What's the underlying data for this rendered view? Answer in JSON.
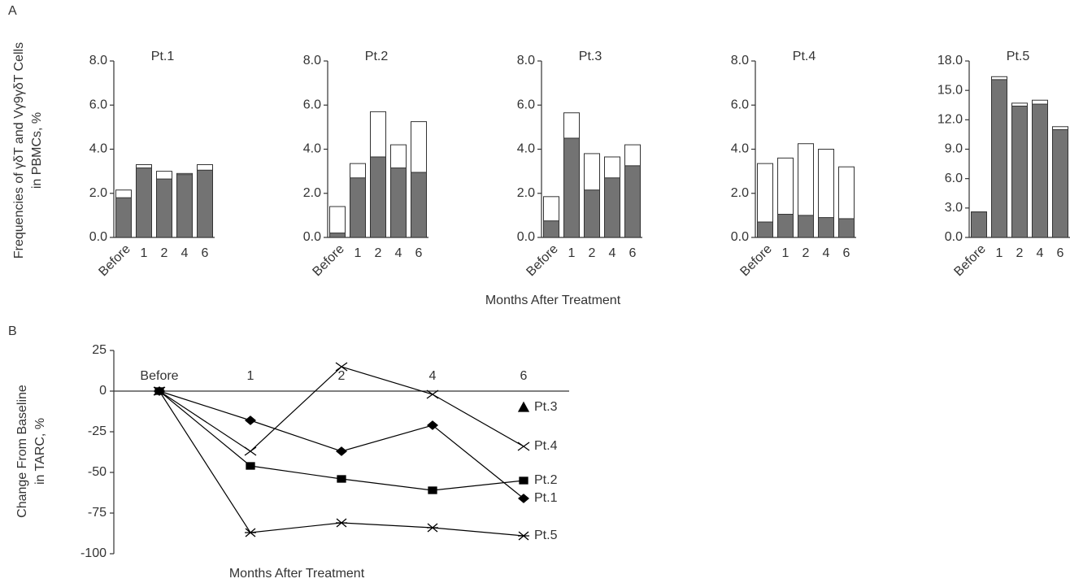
{
  "panel_a": {
    "label": "A",
    "ylabel": [
      "Frequencies of γδT and Vγ9γδT Cells",
      "in PBMCs, %"
    ],
    "xlabel": "Months After Treatment"
  },
  "panel_b": {
    "label": "B"
  },
  "chart_data": [
    {
      "type": "bar",
      "title": "Pt.1",
      "categories": [
        "Before",
        "1",
        "2",
        "4",
        "6"
      ],
      "series": [
        {
          "color": "#ffffff",
          "values": [
            2.15,
            3.3,
            3.0,
            2.9,
            3.3
          ]
        },
        {
          "color": "#737373",
          "values": [
            1.8,
            3.15,
            2.65,
            2.85,
            3.05
          ]
        }
      ],
      "ylim": [
        0,
        8
      ],
      "yticks": [
        {
          "value": 0,
          "label": "0.0"
        },
        {
          "value": 2,
          "label": "2.0"
        },
        {
          "value": 4,
          "label": "4.0"
        },
        {
          "value": 6,
          "label": "6.0"
        },
        {
          "value": 8,
          "label": "8.0"
        }
      ]
    },
    {
      "type": "bar",
      "title": "Pt.2",
      "categories": [
        "Before",
        "1",
        "2",
        "4",
        "6"
      ],
      "series": [
        {
          "color": "#ffffff",
          "values": [
            1.4,
            3.35,
            5.7,
            4.2,
            5.25
          ]
        },
        {
          "color": "#737373",
          "values": [
            0.2,
            2.7,
            3.65,
            3.15,
            2.95
          ]
        }
      ],
      "ylim": [
        0,
        8
      ],
      "yticks": [
        {
          "value": 0,
          "label": "0.0"
        },
        {
          "value": 2,
          "label": "2.0"
        },
        {
          "value": 4,
          "label": "4.0"
        },
        {
          "value": 6,
          "label": "6.0"
        },
        {
          "value": 8,
          "label": "8.0"
        }
      ]
    },
    {
      "type": "bar",
      "title": "Pt.3",
      "categories": [
        "Before",
        "1",
        "2",
        "4",
        "6"
      ],
      "series": [
        {
          "color": "#ffffff",
          "values": [
            1.85,
            5.65,
            3.8,
            3.65,
            4.2
          ]
        },
        {
          "color": "#737373",
          "values": [
            0.75,
            4.5,
            2.15,
            2.7,
            3.25
          ]
        }
      ],
      "ylim": [
        0,
        8
      ],
      "yticks": [
        {
          "value": 0,
          "label": "0.0"
        },
        {
          "value": 2,
          "label": "2.0"
        },
        {
          "value": 4,
          "label": "4.0"
        },
        {
          "value": 6,
          "label": "6.0"
        },
        {
          "value": 8,
          "label": "8.0"
        }
      ]
    },
    {
      "type": "bar",
      "title": "Pt.4",
      "categories": [
        "Before",
        "1",
        "2",
        "4",
        "6"
      ],
      "series": [
        {
          "color": "#ffffff",
          "values": [
            3.35,
            3.6,
            4.25,
            4.0,
            3.2
          ]
        },
        {
          "color": "#737373",
          "values": [
            0.7,
            1.05,
            1.0,
            0.9,
            0.85
          ]
        }
      ],
      "ylim": [
        0,
        8
      ],
      "yticks": [
        {
          "value": 0,
          "label": "0.0"
        },
        {
          "value": 2,
          "label": "2.0"
        },
        {
          "value": 4,
          "label": "4.0"
        },
        {
          "value": 6,
          "label": "6.0"
        },
        {
          "value": 8,
          "label": "8.0"
        }
      ]
    },
    {
      "type": "bar",
      "title": "Pt.5",
      "categories": [
        "Before",
        "1",
        "2",
        "4",
        "6"
      ],
      "series": [
        {
          "color": "#ffffff",
          "values": [
            2.6,
            16.4,
            13.7,
            14.0,
            11.3
          ]
        },
        {
          "color": "#737373",
          "values": [
            2.6,
            16.1,
            13.4,
            13.6,
            11.0
          ]
        }
      ],
      "ylim": [
        0,
        18
      ],
      "yticks": [
        {
          "value": 0,
          "label": "0.0"
        },
        {
          "value": 3,
          "label": "3.0"
        },
        {
          "value": 6,
          "label": "6.0"
        },
        {
          "value": 9,
          "label": "9.0"
        },
        {
          "value": 12,
          "label": "12.0"
        },
        {
          "value": 15,
          "label": "15.0"
        },
        {
          "value": 18,
          "label": "18.0"
        }
      ]
    },
    {
      "type": "line",
      "ylabel": [
        "Change From Baseline",
        "in TARC, %"
      ],
      "xlabel": "Months After Treatment",
      "categories": [
        "Before",
        "1",
        "2",
        "4",
        "6"
      ],
      "series": [
        {
          "name": "Pt.3",
          "color": "#000000",
          "marker": "triangle",
          "values": [
            null,
            null,
            null,
            null,
            -10
          ]
        },
        {
          "name": "Pt.4",
          "color": "#000000",
          "marker": "x",
          "values": [
            0,
            -37,
            15,
            -2,
            -34
          ]
        },
        {
          "name": "Pt.2",
          "color": "#000000",
          "marker": "square",
          "values": [
            0,
            -46,
            -54,
            -61,
            -55
          ]
        },
        {
          "name": "Pt.1",
          "color": "#000000",
          "marker": "diamond",
          "values": [
            0,
            -18,
            -37,
            -21,
            -66
          ]
        },
        {
          "name": "Pt.5",
          "color": "#000000",
          "marker": "asterisk",
          "values": [
            0,
            -87,
            -81,
            -84,
            -89
          ]
        }
      ],
      "ylim": [
        -100,
        25
      ],
      "yticks": [
        25,
        0,
        -25,
        -50,
        -75,
        -100
      ]
    }
  ]
}
